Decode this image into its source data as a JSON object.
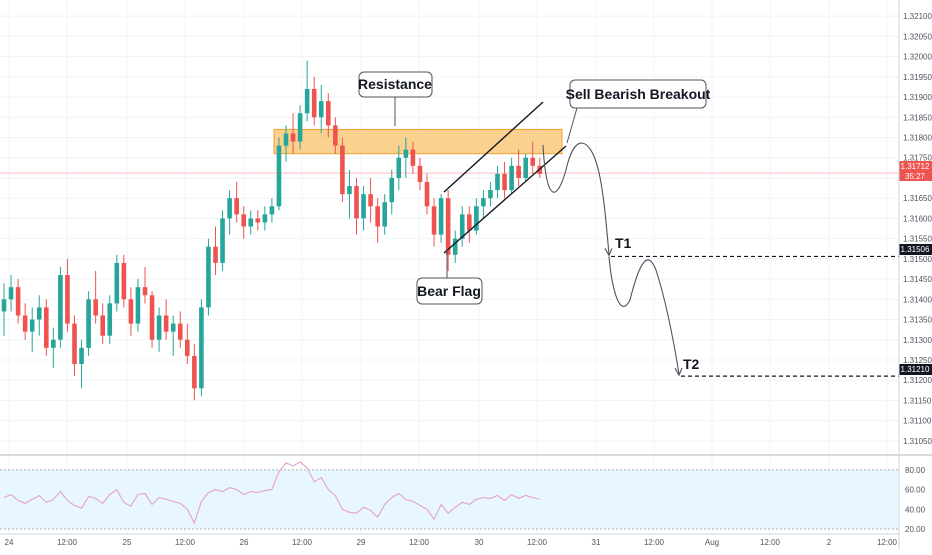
{
  "chart_data": [
    {
      "type": "candlestick",
      "title": "",
      "price_axis": {
        "range": [
          1.3102,
          1.3214
        ],
        "tick_labels": [
          "1.32100",
          "1.32050",
          "1.32000",
          "1.31950",
          "1.31900",
          "1.31850",
          "1.31800",
          "1.31750",
          "1.31700",
          "1.31650",
          "1.31600",
          "1.31550",
          "1.31500",
          "1.31450",
          "1.31400",
          "1.31350",
          "1.31300",
          "1.31250",
          "1.31200",
          "1.31150",
          "1.31100",
          "1.31050"
        ]
      },
      "time_axis": {
        "tick_labels": [
          "24",
          "12:00",
          "25",
          "12:00",
          "26",
          "12:00",
          "29",
          "12:00",
          "30",
          "12:00",
          "31",
          "12:00",
          "Aug",
          "12:00",
          "2",
          "12:00"
        ]
      },
      "grid": true,
      "colors": {
        "up": "#26a69a",
        "down": "#ef5350",
        "zone": "#f9c97a",
        "zone_border": "#f0a030",
        "price_line": "#ef5350",
        "callout_border": "#50535e",
        "rsi_line": "#e6a1c6",
        "rsi_band": "#e8f7fd"
      },
      "candles_ohlc": [
        [
          1.3137,
          1.3144,
          1.3131,
          1.314
        ],
        [
          1.314,
          1.3146,
          1.3137,
          1.3143
        ],
        [
          1.3143,
          1.3145,
          1.3134,
          1.3136
        ],
        [
          1.3136,
          1.3139,
          1.313,
          1.3132
        ],
        [
          1.3132,
          1.3138,
          1.3127,
          1.3135
        ],
        [
          1.3135,
          1.3141,
          1.3131,
          1.3138
        ],
        [
          1.3138,
          1.314,
          1.3126,
          1.3128
        ],
        [
          1.3128,
          1.3133,
          1.3123,
          1.313
        ],
        [
          1.313,
          1.3148,
          1.3128,
          1.3146
        ],
        [
          1.3146,
          1.315,
          1.3132,
          1.3134
        ],
        [
          1.3134,
          1.3136,
          1.3121,
          1.3124
        ],
        [
          1.3124,
          1.313,
          1.3118,
          1.3128
        ],
        [
          1.3128,
          1.3142,
          1.3126,
          1.314
        ],
        [
          1.314,
          1.3147,
          1.3134,
          1.3136
        ],
        [
          1.3136,
          1.3139,
          1.3129,
          1.3131
        ],
        [
          1.3131,
          1.3141,
          1.3129,
          1.3139
        ],
        [
          1.3139,
          1.3151,
          1.3137,
          1.3149
        ],
        [
          1.3149,
          1.3151,
          1.3138,
          1.314
        ],
        [
          1.314,
          1.3143,
          1.3131,
          1.3134
        ],
        [
          1.3134,
          1.3145,
          1.3132,
          1.3143
        ],
        [
          1.3143,
          1.3148,
          1.3139,
          1.3141
        ],
        [
          1.3141,
          1.3142,
          1.3128,
          1.313
        ],
        [
          1.313,
          1.3138,
          1.3127,
          1.3136
        ],
        [
          1.3136,
          1.314,
          1.313,
          1.3132
        ],
        [
          1.3132,
          1.3136,
          1.3126,
          1.3134
        ],
        [
          1.3134,
          1.3137,
          1.3128,
          1.313
        ],
        [
          1.313,
          1.3134,
          1.3124,
          1.3126
        ],
        [
          1.3126,
          1.3129,
          1.3115,
          1.3118
        ],
        [
          1.3118,
          1.314,
          1.3116,
          1.3138
        ],
        [
          1.3138,
          1.3155,
          1.3136,
          1.3153
        ],
        [
          1.3153,
          1.3158,
          1.3146,
          1.3149
        ],
        [
          1.3149,
          1.3162,
          1.3147,
          1.316
        ],
        [
          1.316,
          1.3167,
          1.3156,
          1.3165
        ],
        [
          1.3165,
          1.3169,
          1.3159,
          1.3161
        ],
        [
          1.3161,
          1.3163,
          1.3155,
          1.3158
        ],
        [
          1.3158,
          1.3162,
          1.3156,
          1.316
        ],
        [
          1.316,
          1.3162,
          1.3157,
          1.3159
        ],
        [
          1.3159,
          1.3163,
          1.3157,
          1.3161
        ],
        [
          1.3161,
          1.3165,
          1.3159,
          1.3163
        ],
        [
          1.3163,
          1.318,
          1.3162,
          1.3178
        ],
        [
          1.3178,
          1.3183,
          1.3174,
          1.3181
        ],
        [
          1.3181,
          1.3186,
          1.3176,
          1.3179
        ],
        [
          1.3179,
          1.3188,
          1.3177,
          1.3186
        ],
        [
          1.3186,
          1.3199,
          1.3184,
          1.3192
        ],
        [
          1.3192,
          1.3195,
          1.3183,
          1.3185
        ],
        [
          1.3185,
          1.3193,
          1.3181,
          1.3189
        ],
        [
          1.3189,
          1.3191,
          1.318,
          1.3183
        ],
        [
          1.3183,
          1.3185,
          1.3176,
          1.3178
        ],
        [
          1.3178,
          1.318,
          1.3164,
          1.3166
        ],
        [
          1.3166,
          1.3172,
          1.316,
          1.3168
        ],
        [
          1.3168,
          1.317,
          1.3156,
          1.316
        ],
        [
          1.316,
          1.3168,
          1.3157,
          1.3166
        ],
        [
          1.3166,
          1.317,
          1.3159,
          1.3163
        ],
        [
          1.3163,
          1.3165,
          1.3154,
          1.3158
        ],
        [
          1.3158,
          1.3166,
          1.3156,
          1.3164
        ],
        [
          1.3164,
          1.3172,
          1.3161,
          1.317
        ],
        [
          1.317,
          1.3178,
          1.3167,
          1.3175
        ],
        [
          1.3175,
          1.318,
          1.317,
          1.3177
        ],
        [
          1.3177,
          1.3179,
          1.3171,
          1.3173
        ],
        [
          1.3173,
          1.3175,
          1.3167,
          1.3169
        ],
        [
          1.3169,
          1.3171,
          1.3161,
          1.3163
        ],
        [
          1.3163,
          1.3165,
          1.3153,
          1.3156
        ],
        [
          1.3156,
          1.3166,
          1.3154,
          1.3165
        ],
        [
          1.3165,
          1.3167,
          1.3147,
          1.3151
        ],
        [
          1.3151,
          1.3157,
          1.3149,
          1.3155
        ],
        [
          1.3155,
          1.3163,
          1.3153,
          1.3161
        ],
        [
          1.3161,
          1.3163,
          1.3154,
          1.3157
        ],
        [
          1.3157,
          1.3165,
          1.3156,
          1.3163
        ],
        [
          1.3163,
          1.3167,
          1.316,
          1.3165
        ],
        [
          1.3165,
          1.3169,
          1.3163,
          1.3167
        ],
        [
          1.3167,
          1.3173,
          1.3165,
          1.3171
        ],
        [
          1.3171,
          1.3174,
          1.3165,
          1.3167
        ],
        [
          1.3167,
          1.3175,
          1.3166,
          1.3173
        ],
        [
          1.3173,
          1.3177,
          1.3168,
          1.317
        ],
        [
          1.317,
          1.3176,
          1.3169,
          1.3175
        ],
        [
          1.3175,
          1.3179,
          1.3171,
          1.3173
        ],
        [
          1.3173,
          1.3175,
          1.317,
          1.3171
        ]
      ],
      "current_price": {
        "label": "1.31712",
        "countdown": "35:27"
      },
      "price_badges": [
        "1.31506",
        "1.31210"
      ],
      "annotations": {
        "resistance": {
          "label": "Resistance",
          "zone": [
            1.3176,
            1.3182
          ]
        },
        "bear_flag": {
          "label": "Bear Flag"
        },
        "breakout": {
          "label": "Sell Bearish Breakout"
        },
        "t1": {
          "label": "T1",
          "value": 1.31506
        },
        "t2": {
          "label": "T2",
          "value": 1.3121
        }
      }
    },
    {
      "type": "line",
      "title": "",
      "ylim": [
        18,
        92
      ],
      "tick_labels": [
        "80.00",
        "60.00",
        "40.00",
        "20.00"
      ],
      "band": [
        30,
        70
      ],
      "values": [
        52,
        55,
        49,
        46,
        50,
        54,
        47,
        50,
        58,
        49,
        44,
        41,
        53,
        51,
        46,
        55,
        60,
        47,
        43,
        55,
        56,
        45,
        52,
        50,
        48,
        46,
        40,
        26,
        48,
        57,
        60,
        58,
        62,
        60,
        55,
        58,
        57,
        59,
        60,
        78,
        87,
        84,
        88,
        82,
        68,
        72,
        60,
        54,
        40,
        37,
        36,
        42,
        39,
        32,
        45,
        52,
        56,
        50,
        48,
        44,
        40,
        30,
        45,
        36,
        42,
        47,
        45,
        50,
        52,
        51,
        54,
        49,
        55,
        51,
        54,
        52,
        50
      ]
    }
  ]
}
